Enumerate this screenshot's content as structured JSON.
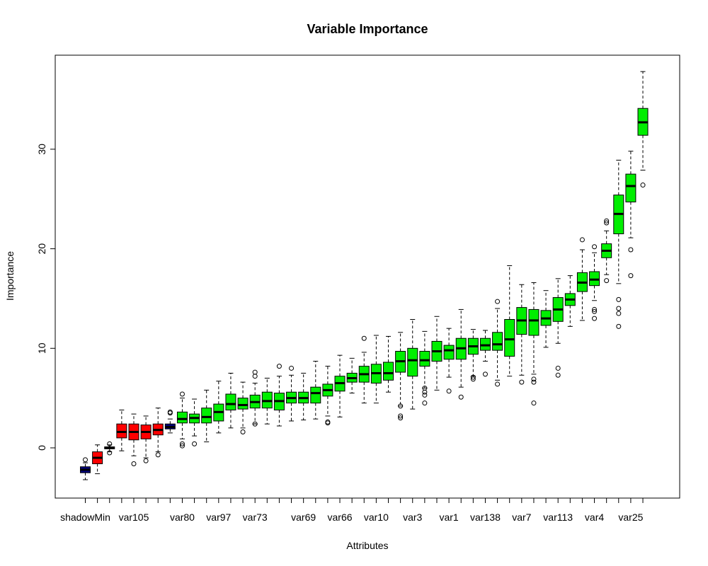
{
  "chart_data": {
    "type": "boxplot",
    "title": "Variable Importance",
    "xlabel": "Attributes",
    "ylabel": "Importance",
    "ylim": [
      -5,
      40
    ],
    "yticks": [
      0,
      10,
      20,
      30
    ],
    "xtick_labels": [
      "shadowMin",
      "var105",
      "var80",
      "var97",
      "var73",
      "var69",
      "var66",
      "var10",
      "var3",
      "var1",
      "var138",
      "var7",
      "var113",
      "var4",
      "var25"
    ],
    "xtick_label_positions": [
      1,
      5,
      9,
      12,
      15,
      19,
      22,
      25,
      28,
      31,
      34,
      37,
      40,
      43,
      46
    ],
    "colors": {
      "shadow": "#000080",
      "rejected": "#ff0000",
      "confirmed": "#00ee00"
    },
    "boxes": [
      {
        "min": -3.2,
        "q1": -2.5,
        "median": -2.2,
        "q3": -1.9,
        "max": -1.5,
        "status": "shadow",
        "outliers": [
          -1.2
        ]
      },
      {
        "min": -2.6,
        "q1": -1.6,
        "median": -1.0,
        "q3": -0.4,
        "max": 0.3,
        "status": "rejected",
        "outliers": []
      },
      {
        "min": -0.4,
        "q1": -0.1,
        "median": 0.0,
        "q3": 0.1,
        "max": 0.3,
        "status": "shadow",
        "outliers": [
          0.4,
          -0.5
        ]
      },
      {
        "min": -0.3,
        "q1": 1.0,
        "median": 1.6,
        "q3": 2.4,
        "max": 3.8,
        "status": "rejected",
        "outliers": []
      },
      {
        "min": -0.8,
        "q1": 0.8,
        "median": 1.6,
        "q3": 2.4,
        "max": 3.4,
        "status": "rejected",
        "outliers": [
          -1.6
        ]
      },
      {
        "min": -1.0,
        "q1": 0.9,
        "median": 1.6,
        "q3": 2.3,
        "max": 3.2,
        "status": "rejected",
        "outliers": [
          -1.3
        ]
      },
      {
        "min": -0.4,
        "q1": 1.3,
        "median": 1.8,
        "q3": 2.4,
        "max": 4.0,
        "status": "rejected",
        "outliers": [
          -0.7
        ]
      },
      {
        "min": 1.5,
        "q1": 1.9,
        "median": 2.1,
        "q3": 2.4,
        "max": 2.9,
        "status": "shadow",
        "outliers": [
          3.5,
          3.6
        ]
      },
      {
        "min": 0.9,
        "q1": 2.5,
        "median": 2.9,
        "q3": 3.6,
        "max": 5.0,
        "status": "confirmed",
        "outliers": [
          5.4,
          0.4,
          0.2
        ]
      },
      {
        "min": 1.2,
        "q1": 2.5,
        "median": 3.0,
        "q3": 3.4,
        "max": 4.9,
        "status": "confirmed",
        "outliers": [
          0.4
        ]
      },
      {
        "min": 0.6,
        "q1": 2.5,
        "median": 3.1,
        "q3": 4.0,
        "max": 5.8,
        "status": "confirmed",
        "outliers": []
      },
      {
        "min": 1.5,
        "q1": 2.7,
        "median": 3.6,
        "q3": 4.4,
        "max": 6.7,
        "status": "confirmed",
        "outliers": []
      },
      {
        "min": 2.0,
        "q1": 3.8,
        "median": 4.4,
        "q3": 5.4,
        "max": 7.5,
        "status": "confirmed",
        "outliers": []
      },
      {
        "min": 2.0,
        "q1": 3.9,
        "median": 4.3,
        "q3": 5.0,
        "max": 6.6,
        "status": "confirmed",
        "outliers": [
          1.6
        ]
      },
      {
        "min": 2.4,
        "q1": 4.0,
        "median": 4.6,
        "q3": 5.3,
        "max": 6.5,
        "status": "confirmed",
        "outliers": [
          7.2,
          7.6,
          2.4
        ]
      },
      {
        "min": 2.4,
        "q1": 4.0,
        "median": 4.7,
        "q3": 5.6,
        "max": 7.0,
        "status": "confirmed",
        "outliers": []
      },
      {
        "min": 2.2,
        "q1": 3.8,
        "median": 4.7,
        "q3": 5.5,
        "max": 7.2,
        "status": "confirmed",
        "outliers": [
          8.2
        ]
      },
      {
        "min": 2.7,
        "q1": 4.5,
        "median": 5.0,
        "q3": 5.6,
        "max": 7.3,
        "status": "confirmed",
        "outliers": [
          8.0
        ]
      },
      {
        "min": 2.8,
        "q1": 4.5,
        "median": 5.0,
        "q3": 5.6,
        "max": 7.5,
        "status": "confirmed",
        "outliers": []
      },
      {
        "min": 2.9,
        "q1": 4.5,
        "median": 5.5,
        "q3": 6.1,
        "max": 8.7,
        "status": "confirmed",
        "outliers": []
      },
      {
        "min": 3.2,
        "q1": 5.2,
        "median": 5.8,
        "q3": 6.4,
        "max": 8.2,
        "status": "confirmed",
        "outliers": [
          2.6,
          2.5
        ]
      },
      {
        "min": 3.1,
        "q1": 5.7,
        "median": 6.5,
        "q3": 7.2,
        "max": 9.3,
        "status": "confirmed",
        "outliers": []
      },
      {
        "min": 5.5,
        "q1": 6.6,
        "median": 7.0,
        "q3": 7.5,
        "max": 9.0,
        "status": "confirmed",
        "outliers": []
      },
      {
        "min": 4.5,
        "q1": 6.6,
        "median": 7.4,
        "q3": 8.2,
        "max": 9.6,
        "status": "confirmed",
        "outliers": [
          11.0
        ]
      },
      {
        "min": 4.5,
        "q1": 6.5,
        "median": 7.5,
        "q3": 8.4,
        "max": 11.3,
        "status": "confirmed",
        "outliers": []
      },
      {
        "min": 5.6,
        "q1": 6.8,
        "median": 7.5,
        "q3": 8.6,
        "max": 11.2,
        "status": "confirmed",
        "outliers": []
      },
      {
        "min": 4.2,
        "q1": 7.6,
        "median": 8.7,
        "q3": 9.7,
        "max": 11.6,
        "status": "confirmed",
        "outliers": [
          4.2,
          3.2,
          3.0
        ]
      },
      {
        "min": 3.9,
        "q1": 7.2,
        "median": 8.8,
        "q3": 10.0,
        "max": 12.9,
        "status": "confirmed",
        "outliers": []
      },
      {
        "min": 6.0,
        "q1": 8.2,
        "median": 8.8,
        "q3": 9.7,
        "max": 11.7,
        "status": "confirmed",
        "outliers": [
          6.0,
          5.6,
          5.3,
          4.5
        ]
      },
      {
        "min": 5.8,
        "q1": 8.7,
        "median": 9.7,
        "q3": 10.7,
        "max": 13.2,
        "status": "confirmed",
        "outliers": []
      },
      {
        "min": 7.1,
        "q1": 8.9,
        "median": 9.8,
        "q3": 10.3,
        "max": 12.0,
        "status": "confirmed",
        "outliers": [
          5.7
        ]
      },
      {
        "min": 6.1,
        "q1": 8.9,
        "median": 10.0,
        "q3": 11.0,
        "max": 13.9,
        "status": "confirmed",
        "outliers": [
          5.1
        ]
      },
      {
        "min": 7.2,
        "q1": 9.4,
        "median": 10.2,
        "q3": 11.0,
        "max": 11.9,
        "status": "confirmed",
        "outliers": [
          7.1,
          6.9
        ]
      },
      {
        "min": 8.7,
        "q1": 9.8,
        "median": 10.3,
        "q3": 11.0,
        "max": 11.8,
        "status": "confirmed",
        "outliers": [
          7.4
        ]
      },
      {
        "min": 6.8,
        "q1": 9.8,
        "median": 10.4,
        "q3": 11.6,
        "max": 14.0,
        "status": "confirmed",
        "outliers": [
          14.7,
          6.4
        ]
      },
      {
        "min": 7.2,
        "q1": 9.2,
        "median": 10.9,
        "q3": 12.9,
        "max": 18.3,
        "status": "confirmed",
        "outliers": []
      },
      {
        "min": 7.3,
        "q1": 11.4,
        "median": 12.8,
        "q3": 14.1,
        "max": 16.4,
        "status": "confirmed",
        "outliers": [
          6.6
        ]
      },
      {
        "min": 7.4,
        "q1": 11.3,
        "median": 12.8,
        "q3": 13.9,
        "max": 16.6,
        "status": "confirmed",
        "outliers": [
          6.9,
          6.6,
          4.5
        ]
      },
      {
        "min": 10.1,
        "q1": 12.3,
        "median": 13.0,
        "q3": 13.8,
        "max": 15.8,
        "status": "confirmed",
        "outliers": []
      },
      {
        "min": 10.5,
        "q1": 12.7,
        "median": 13.9,
        "q3": 15.1,
        "max": 17.0,
        "status": "confirmed",
        "outliers": [
          8.0,
          7.3
        ]
      },
      {
        "min": 12.2,
        "q1": 14.3,
        "median": 14.9,
        "q3": 15.5,
        "max": 17.3,
        "status": "confirmed",
        "outliers": []
      },
      {
        "min": 12.8,
        "q1": 15.7,
        "median": 16.6,
        "q3": 17.6,
        "max": 19.9,
        "status": "confirmed",
        "outliers": [
          20.9
        ]
      },
      {
        "min": 14.8,
        "q1": 16.3,
        "median": 16.9,
        "q3": 17.7,
        "max": 19.6,
        "status": "confirmed",
        "outliers": [
          20.2,
          13.9,
          13.7,
          13.0
        ]
      },
      {
        "min": 17.4,
        "q1": 19.1,
        "median": 19.8,
        "q3": 20.5,
        "max": 21.8,
        "status": "confirmed",
        "outliers": [
          22.8,
          22.6,
          16.8
        ]
      },
      {
        "min": 16.5,
        "q1": 21.5,
        "median": 23.5,
        "q3": 25.4,
        "max": 28.9,
        "status": "confirmed",
        "outliers": [
          14.9,
          14.0,
          13.5,
          12.2
        ]
      },
      {
        "min": 21.1,
        "q1": 24.7,
        "median": 26.3,
        "q3": 27.5,
        "max": 29.8,
        "status": "confirmed",
        "outliers": [
          19.9,
          17.3
        ]
      },
      {
        "min": 27.9,
        "q1": 31.4,
        "median": 32.7,
        "q3": 34.1,
        "max": 37.8,
        "status": "confirmed",
        "outliers": [
          26.4
        ]
      }
    ]
  }
}
